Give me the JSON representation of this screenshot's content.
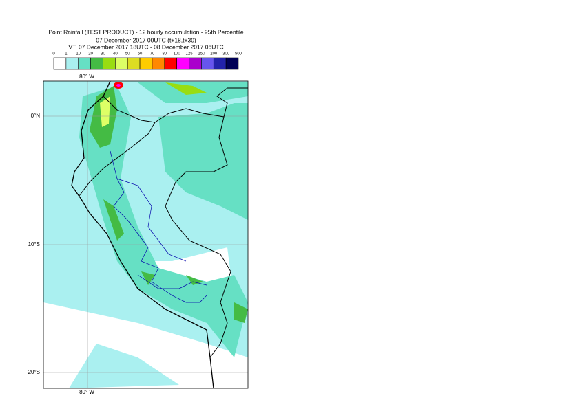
{
  "header": {
    "title": "Point Rainfall (TEST PRODUCT) - 12 hourly accumulation - 95th Percentile",
    "subtitle": "07 December 2017 00UTC (t+18,t+30)",
    "valid_time": "VT: 07 December 2017 18UTC - 08 December 2017 06UTC"
  },
  "colorbar": {
    "labels": [
      0,
      1,
      10,
      20,
      30,
      40,
      50,
      60,
      70,
      80,
      100,
      125,
      150,
      200,
      300,
      500
    ],
    "colors": [
      "#ffffff",
      "#aaf0f0",
      "#66e0c4",
      "#44bb44",
      "#99dd11",
      "#ddff66",
      "#dddd22",
      "#ffcc00",
      "#ff8800",
      "#ff0000",
      "#ff00ff",
      "#aa00cc",
      "#6655ee",
      "#2222aa",
      "#000055"
    ]
  },
  "map": {
    "lon_labels": [
      "80° W",
      "80° W"
    ],
    "lat_labels": [
      "0°N",
      "10°S",
      "20°S"
    ]
  }
}
